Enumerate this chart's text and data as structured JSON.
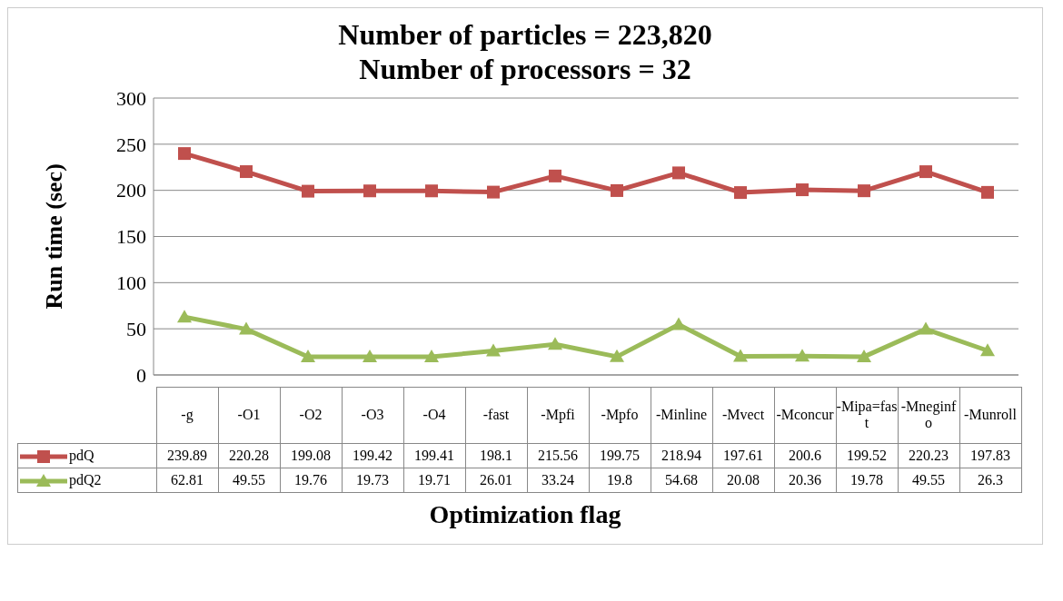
{
  "chart_data": {
    "type": "line",
    "title": "Number of particles = 223,820\nNumber of processors = 32",
    "xlabel": "Optimization flag",
    "ylabel": "Run time (sec)",
    "categories": [
      "-g",
      "-O1",
      "-O2",
      "-O3",
      "-O4",
      "-fast",
      "-Mpfi",
      "-Mpfo",
      "-Minline",
      "-Mvect",
      "-Mconcur",
      "-Mipa=fast",
      "-Mneginfo",
      "-Munroll"
    ],
    "series": [
      {
        "name": "pdQ",
        "color": "#c0504d",
        "marker": "square",
        "values": [
          239.89,
          220.28,
          199.08,
          199.42,
          199.41,
          198.1,
          215.56,
          199.75,
          218.94,
          197.61,
          200.6,
          199.52,
          220.23,
          197.83
        ]
      },
      {
        "name": "pdQ2",
        "color": "#9bbb59",
        "marker": "triangle",
        "values": [
          62.81,
          49.55,
          19.76,
          19.73,
          19.71,
          26.01,
          33.24,
          19.8,
          54.68,
          20.08,
          20.36,
          19.78,
          49.55,
          26.3
        ]
      }
    ],
    "ylim": [
      0,
      300
    ],
    "yticks": [
      0,
      50,
      100,
      150,
      200,
      250,
      300
    ],
    "grid": "y",
    "legend": "bottom",
    "data_labels": true
  }
}
